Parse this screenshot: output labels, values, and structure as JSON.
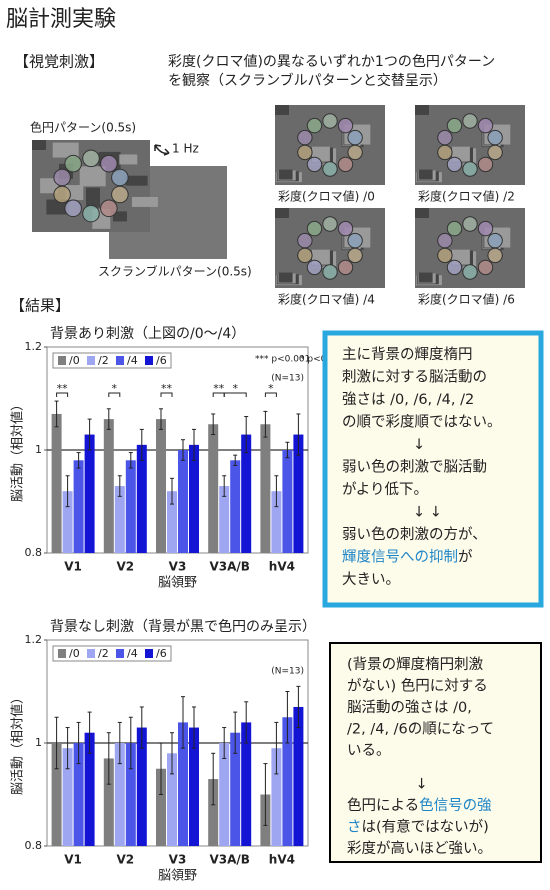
{
  "header": {
    "title": "脳計測実験"
  },
  "stimulus": {
    "heading": "【視覚刺激】",
    "description": [
      "彩度(クロマ値)の異なるいずれか1つの色円パターン",
      "を観察（スクランブルパターンと交替呈示）"
    ],
    "pattern_label": "色円パターン(0.5s)",
    "frequency": "1 Hz",
    "scramble_label": "スクランブルパターン(0.5s)",
    "thumbnails": [
      "彩度(クロマ値) /0",
      "彩度(クロマ値) /2",
      "彩度(クロマ値) /4",
      "彩度(クロマ値) /6"
    ]
  },
  "results": {
    "heading": "【結果】"
  },
  "chart_data": [
    {
      "type": "bar",
      "title": "背景あり刺激（上図の/0～/4）",
      "xlabel": "脳領野",
      "ylabel": "脳活動（相対値）",
      "categories": [
        "V1",
        "V2",
        "V3",
        "V3A/B",
        "hV4"
      ],
      "series": [
        {
          "name": "/0",
          "color": "#7f7f7f",
          "values": [
            1.07,
            1.06,
            1.06,
            1.05,
            1.05
          ],
          "errors": [
            0.025,
            0.02,
            0.02,
            0.02,
            0.025
          ]
        },
        {
          "name": "/2",
          "color": "#9ea6f2",
          "values": [
            0.92,
            0.93,
            0.92,
            0.93,
            0.92
          ],
          "errors": [
            0.03,
            0.02,
            0.025,
            0.02,
            0.03
          ]
        },
        {
          "name": "/4",
          "color": "#4b56e8",
          "values": [
            0.98,
            0.98,
            1.0,
            0.98,
            1.0
          ],
          "errors": [
            0.015,
            0.015,
            0.02,
            0.01,
            0.015
          ]
        },
        {
          "name": "/6",
          "color": "#1414d4",
          "values": [
            1.03,
            1.01,
            1.01,
            1.03,
            1.03
          ],
          "errors": [
            0.03,
            0.03,
            0.03,
            0.035,
            0.04
          ]
        }
      ],
      "ylim": [
        0.8,
        1.2
      ],
      "yticks": [
        0.8,
        1,
        1.2
      ],
      "hline": 1,
      "legend": "upper left",
      "notes": [
        "*** p<0.001",
        "* p<0.05",
        "(N=13)"
      ],
      "annotations": [
        "**",
        "*",
        "**",
        "**",
        "*",
        "*"
      ]
    },
    {
      "type": "bar",
      "title": "背景なし刺激（背景が黒で色円のみ呈示）",
      "xlabel": "脳領野",
      "ylabel": "脳活動（相対値）",
      "categories": [
        "V1",
        "V2",
        "V3",
        "V3A/B",
        "hV4"
      ],
      "series": [
        {
          "name": "/0",
          "color": "#7f7f7f",
          "values": [
            1.0,
            0.97,
            0.95,
            0.93,
            0.9
          ],
          "errors": [
            0.05,
            0.05,
            0.05,
            0.05,
            0.06
          ]
        },
        {
          "name": "/2",
          "color": "#9ea6f2",
          "values": [
            0.99,
            1.0,
            0.98,
            1.0,
            0.99
          ],
          "errors": [
            0.04,
            0.04,
            0.04,
            0.03,
            0.05
          ]
        },
        {
          "name": "/4",
          "color": "#4b56e8",
          "values": [
            1.0,
            1.0,
            1.04,
            1.02,
            1.05
          ],
          "errors": [
            0.04,
            0.05,
            0.05,
            0.04,
            0.05
          ]
        },
        {
          "name": "/6",
          "color": "#1414d4",
          "values": [
            1.02,
            1.03,
            1.03,
            1.04,
            1.07
          ],
          "errors": [
            0.04,
            0.04,
            0.04,
            0.04,
            0.04
          ]
        }
      ],
      "ylim": [
        0.8,
        1.2
      ],
      "yticks": [
        0.8,
        1,
        1.2
      ],
      "hline": 1,
      "legend": "upper left",
      "notes": [
        "(N=13)"
      ]
    }
  ],
  "boxes": [
    {
      "border": "#29a8e0",
      "lines": [
        [
          "主に背景の輝度楕円"
        ],
        [
          "刺激に対する脳活動の"
        ],
        [
          "強さは /0, /6, /4, /2"
        ],
        [
          "の順で彩度順ではない。"
        ],
        [
          "↓"
        ],
        [
          "弱い色の刺激で脳活動"
        ],
        [
          "がより低下。"
        ],
        [
          "↓ ↓"
        ],
        [
          "弱い色の刺激の方が、"
        ],
        [
          {
            "text": "輝度信号への抑制",
            "color": "#1f86c8"
          },
          "が"
        ],
        [
          "大きい。"
        ]
      ]
    },
    {
      "border": "#000000",
      "lines": [
        [
          "(背景の輝度楕円刺激"
        ],
        [
          "がない) 色円に対する"
        ],
        [
          "脳活動の強さは /0,"
        ],
        [
          "/2, /4, /6の順になって"
        ],
        [
          "いる。"
        ],
        [
          "↓"
        ],
        [
          "色円による",
          {
            "text": "色信号の強",
            "color": "#1f86c8"
          }
        ],
        [
          {
            "text": "さ",
            "color": "#1f86c8"
          },
          "は(有意ではないが)"
        ],
        [
          "彩度が高いほど強い。"
        ]
      ]
    }
  ]
}
